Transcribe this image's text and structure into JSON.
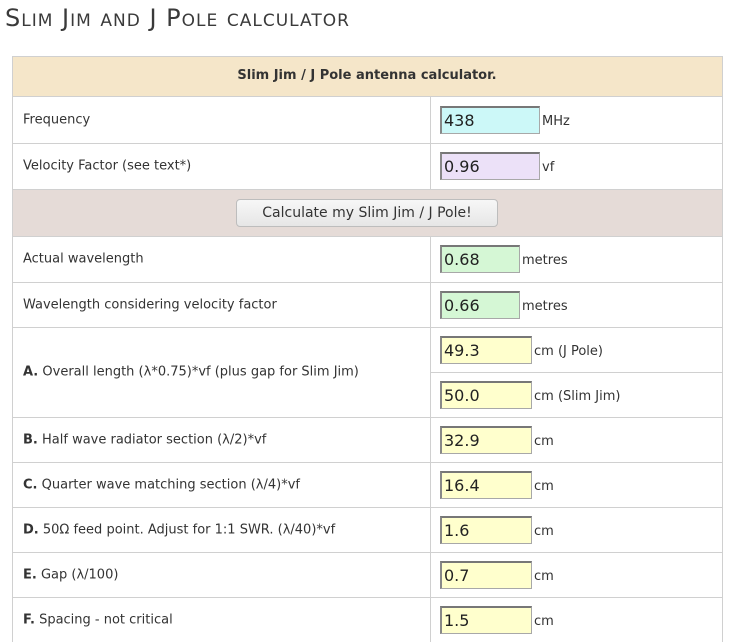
{
  "title": "Slim Jim and J Pole calculator",
  "table": {
    "header": "Slim Jim / J Pole antenna calculator.",
    "inputs": [
      {
        "label": "Frequency",
        "value": "438",
        "unit": "MHz"
      },
      {
        "label": "Velocity Factor (see text*)",
        "value": "0.96",
        "unit": "vf"
      }
    ],
    "button": "Calculate my Slim Jim / J Pole!",
    "wavelengths": [
      {
        "label": "Actual wavelength",
        "value": "0.68",
        "unit": "metres"
      },
      {
        "label": "Wavelength considering velocity factor",
        "value": "0.66",
        "unit": "metres"
      }
    ],
    "sections": [
      {
        "letter": "A.",
        "label": "Overall length (λ*0.75)*vf (plus gap for Slim Jim)",
        "results": [
          {
            "value": "49.3",
            "unit": "cm (J Pole)"
          },
          {
            "value": "50.0",
            "unit": "cm (Slim Jim)"
          }
        ]
      },
      {
        "letter": "B.",
        "label": "Half wave radiator section (λ/2)*vf",
        "results": [
          {
            "value": "32.9",
            "unit": "cm"
          }
        ]
      },
      {
        "letter": "C.",
        "label": "Quarter wave matching section (λ/4)*vf",
        "results": [
          {
            "value": "16.4",
            "unit": "cm"
          }
        ]
      },
      {
        "letter": "D.",
        "label": "50Ω feed point. Adjust for 1:1 SWR. (λ/40)*vf",
        "results": [
          {
            "value": "1.6",
            "unit": "cm"
          }
        ]
      },
      {
        "letter": "E.",
        "label": "Gap (λ/100)",
        "results": [
          {
            "value": "0.7",
            "unit": "cm"
          }
        ]
      },
      {
        "letter": "F.",
        "label": "Spacing - not critical",
        "results": [
          {
            "value": "1.5",
            "unit": "cm"
          }
        ]
      }
    ]
  }
}
